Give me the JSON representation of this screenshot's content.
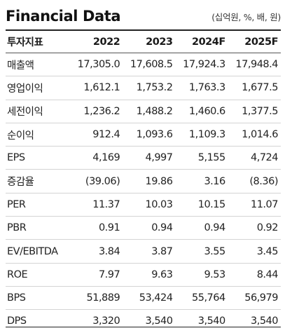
{
  "header": {
    "title": "Financial Data",
    "units": "(십억원, %, 배, 원)"
  },
  "table": {
    "label_header": "투자지표",
    "columns": [
      "2022",
      "2023",
      "2024F",
      "2025F"
    ],
    "rows": [
      {
        "label": "매출액",
        "values": [
          "17,305.0",
          "17,608.5",
          "17,924.3",
          "17,948.4"
        ]
      },
      {
        "label": "영업이익",
        "values": [
          "1,612.1",
          "1,753.2",
          "1,763.3",
          "1,677.5"
        ]
      },
      {
        "label": "세전이익",
        "values": [
          "1,236.2",
          "1,488.2",
          "1,460.6",
          "1,377.5"
        ]
      },
      {
        "label": "순이익",
        "values": [
          "912.4",
          "1,093.6",
          "1,109.3",
          "1,014.6"
        ]
      },
      {
        "label": "EPS",
        "values": [
          "4,169",
          "4,997",
          "5,155",
          "4,724"
        ]
      },
      {
        "label": "증감율",
        "values": [
          "(39.06)",
          "19.86",
          "3.16",
          "(8.36)"
        ]
      },
      {
        "label": "PER",
        "values": [
          "11.37",
          "10.03",
          "10.15",
          "11.07"
        ]
      },
      {
        "label": "PBR",
        "values": [
          "0.91",
          "0.94",
          "0.94",
          "0.92"
        ]
      },
      {
        "label": "EV/EBITDA",
        "values": [
          "3.84",
          "3.87",
          "3.55",
          "3.45"
        ]
      },
      {
        "label": "ROE",
        "values": [
          "7.97",
          "9.63",
          "9.53",
          "8.44"
        ]
      },
      {
        "label": "BPS",
        "values": [
          "51,889",
          "53,424",
          "55,764",
          "56,979"
        ]
      },
      {
        "label": "DPS",
        "values": [
          "3,320",
          "3,540",
          "3,540",
          "3,540"
        ]
      }
    ]
  }
}
